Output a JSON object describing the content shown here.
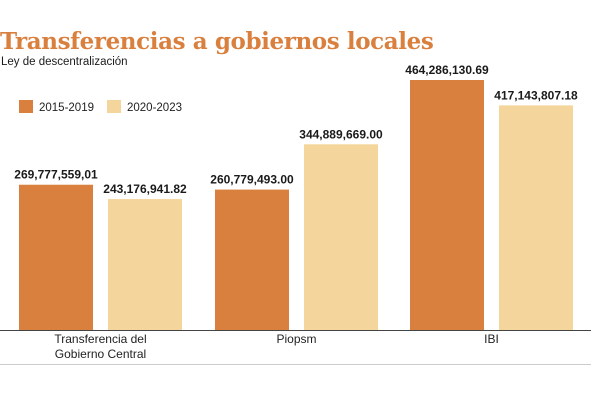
{
  "title": "Transferencias a gobiernos locales",
  "subtitle": "Ley de descentralización",
  "colors": {
    "title": "#d9803f",
    "series_1": "#d9803f",
    "series_2": "#f4d59c",
    "baseline": "#444444",
    "text": "#1a1a1a"
  },
  "chart_data": {
    "type": "bar",
    "title": "Transferencias a gobiernos locales",
    "subtitle": "Ley de descentralización",
    "categories": [
      [
        "Transferencia del",
        "Gobierno Central"
      ],
      [
        "Piopsm"
      ],
      [
        "IBI"
      ]
    ],
    "series": [
      {
        "name": "2015-2019",
        "values": [
          269777559.01,
          260779493.0,
          464286130.69
        ],
        "labels": [
          "269,777,559,01",
          "260,779,493.00",
          "464,286,130.69"
        ]
      },
      {
        "name": "2020-2023",
        "values": [
          243176941.82,
          344889669.0,
          417143807.18
        ],
        "labels": [
          "243,176,941.82",
          "344,889,669.00",
          "417,143,807.18"
        ]
      }
    ],
    "ylim": [
      0,
      500000000
    ],
    "legend_position": "top-left",
    "grid": false,
    "xlabel": "",
    "ylabel": ""
  }
}
